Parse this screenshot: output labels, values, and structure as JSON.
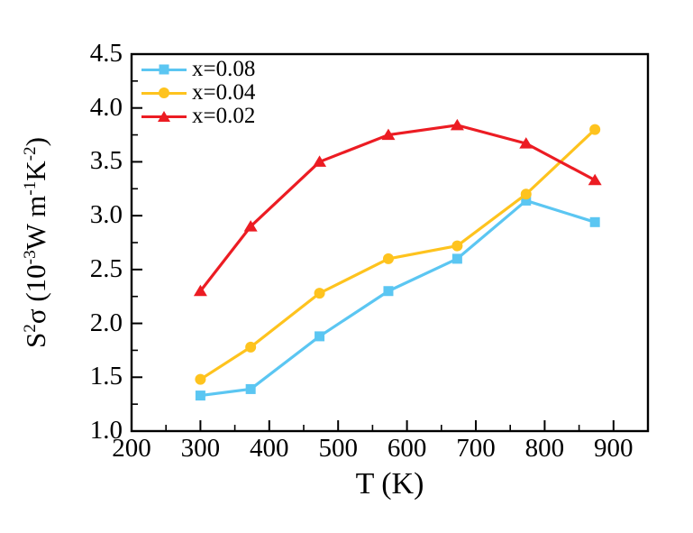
{
  "figure": {
    "background": "#ffffff",
    "axis_color": "#000000"
  },
  "chart_data": {
    "type": "line",
    "title": "",
    "xlabel": "T (K)",
    "ylabel": "S2σ (10-3W m-1K-2)",
    "ylabel_parts": [
      {
        "text": "S",
        "sup": false
      },
      {
        "text": "2",
        "sup": true
      },
      {
        "text": "σ (10",
        "sup": false
      },
      {
        "text": "-3",
        "sup": true
      },
      {
        "text": "W m",
        "sup": false
      },
      {
        "text": "-1",
        "sup": true
      },
      {
        "text": "K",
        "sup": false
      },
      {
        "text": "-2",
        "sup": true
      },
      {
        "text": ")",
        "sup": false
      }
    ],
    "xlim": [
      200,
      950
    ],
    "ylim": [
      1.0,
      4.5
    ],
    "x_major_ticks": [
      200,
      300,
      400,
      500,
      600,
      700,
      800,
      900
    ],
    "x_tick_labels": [
      "200",
      "300",
      "400",
      "500",
      "600",
      "700",
      "800",
      "900"
    ],
    "y_major_ticks": [
      1.0,
      1.5,
      2.0,
      2.5,
      3.0,
      3.5,
      4.0,
      4.5
    ],
    "y_tick_labels": [
      "1.0",
      "1.5",
      "2.0",
      "2.5",
      "3.0",
      "3.5",
      "4.0",
      "4.5"
    ],
    "x_minor_step": 50,
    "y_minor_step": 0.25,
    "grid": false,
    "legend_position": "top-left",
    "x": [
      300,
      373,
      473,
      573,
      673,
      773,
      873
    ],
    "series": [
      {
        "name": "x=0.08",
        "color": "#5bc6f2",
        "marker": "square",
        "values": [
          1.33,
          1.39,
          1.88,
          2.3,
          2.6,
          3.14,
          2.94
        ]
      },
      {
        "name": "x=0.04",
        "color": "#fec31e",
        "marker": "circle",
        "values": [
          1.48,
          1.78,
          2.28,
          2.6,
          2.72,
          3.2,
          3.8
        ]
      },
      {
        "name": "x=0.02",
        "color": "#ec1c23",
        "marker": "triangle",
        "values": [
          2.3,
          2.9,
          3.5,
          3.75,
          3.84,
          3.67,
          3.33
        ]
      }
    ]
  }
}
